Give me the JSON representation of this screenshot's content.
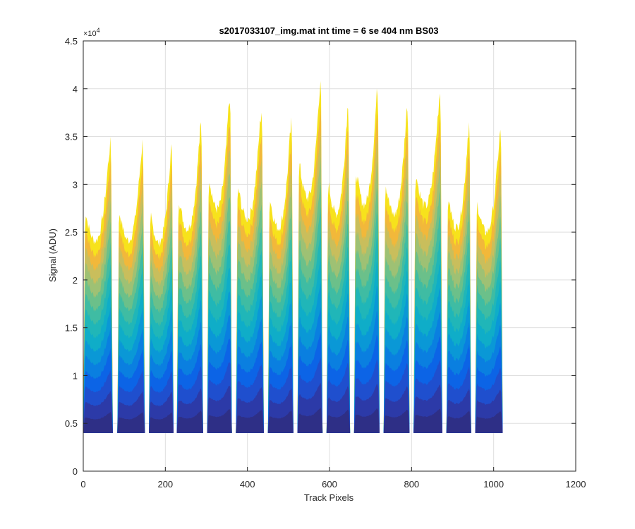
{
  "chart_data": {
    "type": "area",
    "title": "s2017033107_img.mat int time = 6 se  404 nm BS03",
    "xlabel": "Track Pixels",
    "ylabel": "Signal (ADU)",
    "xlim": [
      0,
      1200
    ],
    "ylim": [
      0,
      45000
    ],
    "x_ticks": [
      0,
      200,
      400,
      600,
      800,
      1000,
      1200
    ],
    "x_tick_labels": [
      "0",
      "200",
      "400",
      "600",
      "800",
      "1000",
      "1200"
    ],
    "y_ticks": [
      0,
      5000,
      10000,
      15000,
      20000,
      25000,
      30000,
      35000,
      40000,
      45000
    ],
    "y_tick_labels": [
      "0",
      "0.5",
      "1",
      "1.5",
      "2",
      "2.5",
      "3",
      "3.5",
      "4",
      "4.5"
    ],
    "y_exponent_label": "×10",
    "y_exponent_power": "4",
    "grid": true,
    "baseline": 4000,
    "colors": {
      "band_palette": [
        "#2e2f86",
        "#2c3aa8",
        "#1f4fce",
        "#0c64e6",
        "#0a7fe0",
        "#0a98d6",
        "#0fadc8",
        "#20b6b8",
        "#3fbca3",
        "#6bc08a",
        "#9ec174",
        "#c9be5c",
        "#f2b83a",
        "#f7e21c"
      ]
    },
    "tracks": [
      {
        "start": 0,
        "end": 72,
        "peak": 35000
      },
      {
        "start": 83,
        "end": 150,
        "peak": 34700
      },
      {
        "start": 160,
        "end": 220,
        "peak": 34200
      },
      {
        "start": 228,
        "end": 292,
        "peak": 36500
      },
      {
        "start": 302,
        "end": 362,
        "peak": 38500
      },
      {
        "start": 372,
        "end": 440,
        "peak": 37500
      },
      {
        "start": 450,
        "end": 512,
        "peak": 37000
      },
      {
        "start": 522,
        "end": 583,
        "peak": 40800
      },
      {
        "start": 593,
        "end": 650,
        "peak": 38000
      },
      {
        "start": 660,
        "end": 722,
        "peak": 40000
      },
      {
        "start": 732,
        "end": 795,
        "peak": 38000
      },
      {
        "start": 805,
        "end": 875,
        "peak": 39500
      },
      {
        "start": 885,
        "end": 945,
        "peak": 36500
      },
      {
        "start": 955,
        "end": 1022,
        "peak": 35700
      }
    ]
  }
}
